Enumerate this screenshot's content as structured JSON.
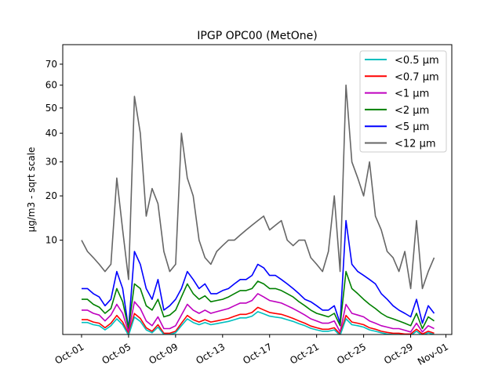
{
  "chart_data": {
    "type": "line",
    "title": "IPGP OPC00 (MetOne)",
    "xlabel": "",
    "ylabel": "µg/m3 - sqrt scale",
    "yscale": "sqrt",
    "ylim": [
      0.14,
      80
    ],
    "xlim_days": [
      -1.6,
      31.5
    ],
    "x_start_day": 0,
    "x_step_days": 0.5,
    "x_ticks": [
      {
        "day": 0,
        "label": "Oct-01"
      },
      {
        "day": 4,
        "label": "Oct-05"
      },
      {
        "day": 8,
        "label": "Oct-09"
      },
      {
        "day": 12,
        "label": "Oct-13"
      },
      {
        "day": 16,
        "label": "Oct-17"
      },
      {
        "day": 20,
        "label": "Oct-21"
      },
      {
        "day": 24,
        "label": "Oct-25"
      },
      {
        "day": 28,
        "label": "Oct-29"
      },
      {
        "day": 31,
        "label": "Nov-01"
      }
    ],
    "y_ticks": [
      {
        "value": 10,
        "label": "10"
      },
      {
        "value": 20,
        "label": "20"
      },
      {
        "value": 30,
        "label": "30"
      },
      {
        "value": 40,
        "label": "40"
      },
      {
        "value": 50,
        "label": "50"
      },
      {
        "value": 60,
        "label": "60"
      },
      {
        "value": 70,
        "label": "70"
      }
    ],
    "legend_position": "top-right",
    "series": [
      {
        "name": "<12 µm",
        "color": "#666666",
        "values": [
          10,
          8,
          7,
          6,
          5,
          6,
          25,
          12,
          4,
          55,
          40,
          15,
          22,
          18,
          8,
          5,
          6,
          40,
          25,
          20,
          10,
          7,
          6,
          8,
          9,
          10,
          10,
          11,
          12,
          13,
          14,
          15,
          12,
          13,
          14,
          10,
          9,
          10,
          10,
          7,
          6,
          5,
          8,
          20,
          5,
          60,
          30,
          25,
          20,
          30,
          15,
          12,
          8,
          7,
          5,
          8,
          3,
          14,
          3,
          5,
          7
        ]
      },
      {
        "name": "<5 µm",
        "color": "#0000ff",
        "values": [
          3,
          3,
          2.5,
          2.2,
          1.5,
          2,
          5,
          3,
          0.3,
          8,
          6,
          3,
          2,
          4,
          1.2,
          1.5,
          2,
          3,
          5,
          4,
          3,
          3.5,
          2.5,
          2.5,
          2.8,
          3,
          3.5,
          4,
          4,
          4.5,
          6,
          5.5,
          4.5,
          4.5,
          4,
          3.5,
          3,
          2.5,
          2,
          1.8,
          1.5,
          1.2,
          1.2,
          1.5,
          0.5,
          14,
          6,
          5,
          4.5,
          4,
          3.5,
          2.5,
          2,
          1.5,
          1.2,
          1,
          0.8,
          2,
          0.5,
          1.5,
          1
        ]
      },
      {
        "name": "<2 µm",
        "color": "#008000",
        "values": [
          2,
          2,
          1.6,
          1.4,
          1,
          1.3,
          3,
          1.8,
          0.3,
          3.5,
          3,
          1.5,
          1.2,
          2,
          0.8,
          0.9,
          1.2,
          2.2,
          3.5,
          2.5,
          2,
          2.3,
          1.8,
          1.9,
          2,
          2.2,
          2.5,
          2.8,
          2.8,
          3,
          3.8,
          3.5,
          3,
          3,
          2.8,
          2.5,
          2.2,
          1.8,
          1.5,
          1.2,
          1,
          0.9,
          0.8,
          1,
          0.4,
          5,
          3,
          2.5,
          2,
          1.6,
          1.3,
          1,
          0.8,
          0.7,
          0.6,
          0.5,
          0.4,
          1,
          0.3,
          0.8,
          0.6
        ]
      },
      {
        "name": "<1 µm",
        "color": "#bf00bf",
        "values": [
          1.2,
          1.2,
          1,
          0.9,
          0.6,
          0.9,
          1.6,
          1,
          0.2,
          1.8,
          1.3,
          0.6,
          0.4,
          0.8,
          0.3,
          0.3,
          0.4,
          0.9,
          1.6,
          1.2,
          1,
          1.2,
          1,
          1.1,
          1.2,
          1.3,
          1.5,
          1.7,
          1.7,
          1.9,
          2.5,
          2.2,
          1.9,
          1.8,
          1.7,
          1.5,
          1.3,
          1.1,
          0.9,
          0.7,
          0.6,
          0.5,
          0.5,
          0.6,
          0.2,
          1.6,
          1,
          0.9,
          0.8,
          0.6,
          0.5,
          0.4,
          0.35,
          0.3,
          0.3,
          0.25,
          0.2,
          0.5,
          0.2,
          0.4,
          0.3
        ]
      },
      {
        "name": "<0.7 µm",
        "color": "#ff0000",
        "values": [
          0.66,
          0.66,
          0.55,
          0.5,
          0.33,
          0.5,
          0.88,
          0.55,
          0.15,
          0.99,
          0.72,
          0.33,
          0.22,
          0.44,
          0.17,
          0.17,
          0.22,
          0.5,
          0.88,
          0.66,
          0.55,
          0.66,
          0.55,
          0.6,
          0.66,
          0.72,
          0.83,
          0.94,
          0.94,
          1.05,
          1.38,
          1.21,
          1.05,
          0.99,
          0.94,
          0.83,
          0.72,
          0.6,
          0.5,
          0.39,
          0.33,
          0.28,
          0.28,
          0.33,
          0.15,
          0.88,
          0.55,
          0.5,
          0.44,
          0.33,
          0.28,
          0.22,
          0.19,
          0.17,
          0.17,
          0.15,
          0.15,
          0.28,
          0.15,
          0.22,
          0.17
        ]
      },
      {
        "name": "<0.5 µm",
        "color": "#00bfbf",
        "values": [
          0.53,
          0.53,
          0.44,
          0.4,
          0.26,
          0.4,
          0.7,
          0.44,
          0.12,
          0.79,
          0.58,
          0.26,
          0.18,
          0.35,
          0.14,
          0.14,
          0.18,
          0.4,
          0.7,
          0.53,
          0.44,
          0.53,
          0.44,
          0.48,
          0.53,
          0.58,
          0.66,
          0.75,
          0.75,
          0.84,
          1.1,
          0.97,
          0.84,
          0.79,
          0.75,
          0.66,
          0.58,
          0.48,
          0.4,
          0.31,
          0.26,
          0.22,
          0.22,
          0.26,
          0.12,
          0.7,
          0.44,
          0.4,
          0.35,
          0.26,
          0.22,
          0.18,
          0.15,
          0.14,
          0.14,
          0.12,
          0.12,
          0.22,
          0.12,
          0.18,
          0.14
        ]
      }
    ],
    "legend_order": [
      "<0.5 µm",
      "<0.7 µm",
      "<1 µm",
      "<2 µm",
      "<5 µm",
      "<12 µm"
    ]
  }
}
